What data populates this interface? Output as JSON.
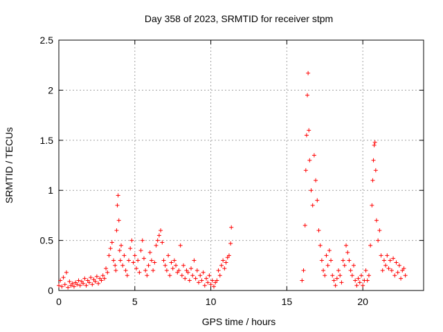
{
  "chart_data": {
    "type": "scatter",
    "title": "Day 358 of 2023, SRMTID for receiver stpm",
    "xlabel": "GPS time / hours",
    "ylabel": "SRMTID / TECUs",
    "xlim": [
      0,
      24
    ],
    "ylim": [
      0,
      2.5
    ],
    "xticks": [
      0,
      5,
      10,
      15,
      20
    ],
    "yticks": [
      0,
      0.5,
      1,
      1.5,
      2,
      2.5
    ],
    "ytick_labels": [
      "0",
      "0.5",
      "1",
      "1.5",
      "2",
      "2.5"
    ],
    "grid": true,
    "marker": "+",
    "series": [
      {
        "name": "SRMTID",
        "color": "#ff0000",
        "x": [
          0.0,
          0.1,
          0.2,
          0.3,
          0.4,
          0.5,
          0.6,
          0.7,
          0.8,
          0.9,
          1.0,
          1.1,
          1.2,
          1.3,
          1.4,
          1.5,
          1.6,
          1.7,
          1.8,
          1.9,
          2.0,
          2.1,
          2.2,
          2.3,
          2.4,
          2.5,
          2.6,
          2.7,
          2.8,
          2.9,
          3.0,
          3.1,
          3.2,
          3.3,
          3.4,
          3.5,
          3.6,
          3.7,
          3.75,
          3.8,
          3.85,
          3.9,
          3.95,
          4.0,
          4.05,
          4.1,
          4.2,
          4.3,
          4.4,
          4.5,
          4.6,
          4.7,
          4.8,
          4.9,
          5.0,
          5.1,
          5.2,
          5.3,
          5.4,
          5.5,
          5.6,
          5.7,
          5.8,
          5.9,
          6.0,
          6.1,
          6.2,
          6.3,
          6.4,
          6.5,
          6.6,
          6.7,
          6.8,
          6.9,
          7.0,
          7.1,
          7.2,
          7.3,
          7.4,
          7.5,
          7.6,
          7.7,
          7.8,
          7.9,
          8.0,
          8.1,
          8.2,
          8.3,
          8.4,
          8.5,
          8.6,
          8.7,
          8.8,
          8.9,
          9.0,
          9.1,
          9.2,
          9.3,
          9.4,
          9.5,
          9.6,
          9.7,
          9.8,
          9.9,
          10.0,
          10.1,
          10.2,
          10.3,
          10.4,
          10.5,
          10.6,
          10.7,
          10.8,
          10.9,
          11.0,
          11.1,
          11.2,
          11.3,
          11.35,
          16.0,
          16.1,
          16.2,
          16.25,
          16.3,
          16.35,
          16.4,
          16.45,
          16.5,
          16.6,
          16.7,
          16.8,
          16.9,
          17.0,
          17.1,
          17.2,
          17.3,
          17.4,
          17.5,
          17.6,
          17.7,
          17.8,
          17.9,
          18.0,
          18.1,
          18.2,
          18.3,
          18.4,
          18.5,
          18.6,
          18.7,
          18.8,
          18.9,
          19.0,
          19.1,
          19.2,
          19.3,
          19.4,
          19.5,
          19.6,
          19.7,
          19.8,
          19.9,
          20.0,
          20.1,
          20.2,
          20.3,
          20.4,
          20.5,
          20.6,
          20.65,
          20.7,
          20.75,
          20.8,
          20.85,
          20.9,
          21.0,
          21.1,
          21.2,
          21.3,
          21.4,
          21.5,
          21.6,
          21.7,
          21.8,
          21.9,
          22.0,
          22.1,
          22.2,
          22.3,
          22.4,
          22.5,
          22.6,
          22.7,
          22.8
        ],
        "y": [
          0.05,
          0.1,
          0.04,
          0.13,
          0.06,
          0.18,
          0.03,
          0.09,
          0.05,
          0.07,
          0.04,
          0.08,
          0.06,
          0.1,
          0.05,
          0.09,
          0.07,
          0.12,
          0.05,
          0.1,
          0.08,
          0.13,
          0.06,
          0.11,
          0.09,
          0.14,
          0.07,
          0.12,
          0.1,
          0.15,
          0.12,
          0.22,
          0.18,
          0.35,
          0.42,
          0.48,
          0.3,
          0.25,
          0.2,
          0.6,
          0.85,
          0.95,
          0.7,
          0.4,
          0.3,
          0.45,
          0.25,
          0.35,
          0.2,
          0.15,
          0.3,
          0.42,
          0.5,
          0.28,
          0.35,
          0.22,
          0.3,
          0.18,
          0.4,
          0.5,
          0.32,
          0.2,
          0.15,
          0.25,
          0.38,
          0.3,
          0.2,
          0.28,
          0.45,
          0.5,
          0.55,
          0.6,
          0.48,
          0.3,
          0.25,
          0.2,
          0.35,
          0.15,
          0.28,
          0.22,
          0.3,
          0.25,
          0.18,
          0.2,
          0.45,
          0.15,
          0.25,
          0.12,
          0.2,
          0.18,
          0.1,
          0.22,
          0.15,
          0.3,
          0.12,
          0.2,
          0.08,
          0.15,
          0.1,
          0.18,
          0.05,
          0.12,
          0.08,
          0.15,
          0.06,
          0.1,
          0.04,
          0.08,
          0.1,
          0.2,
          0.15,
          0.25,
          0.3,
          0.22,
          0.28,
          0.33,
          0.35,
          0.47,
          0.63,
          0.1,
          0.2,
          0.65,
          1.2,
          1.55,
          1.95,
          2.17,
          1.6,
          1.3,
          1.0,
          0.85,
          1.35,
          1.1,
          0.9,
          0.6,
          0.45,
          0.3,
          0.2,
          0.15,
          0.35,
          0.25,
          0.4,
          0.3,
          0.15,
          0.1,
          0.05,
          0.12,
          0.2,
          0.15,
          0.08,
          0.3,
          0.25,
          0.45,
          0.38,
          0.3,
          0.2,
          0.15,
          0.25,
          0.1,
          0.05,
          0.12,
          0.08,
          0.15,
          0.05,
          0.1,
          0.2,
          0.1,
          0.15,
          0.45,
          0.85,
          1.1,
          1.3,
          1.45,
          1.48,
          1.2,
          0.7,
          0.5,
          0.6,
          0.35,
          0.2,
          0.3,
          0.25,
          0.35,
          0.22,
          0.3,
          0.2,
          0.32,
          0.15,
          0.28,
          0.18,
          0.25,
          0.12,
          0.2,
          0.22,
          0.15
        ]
      }
    ]
  }
}
